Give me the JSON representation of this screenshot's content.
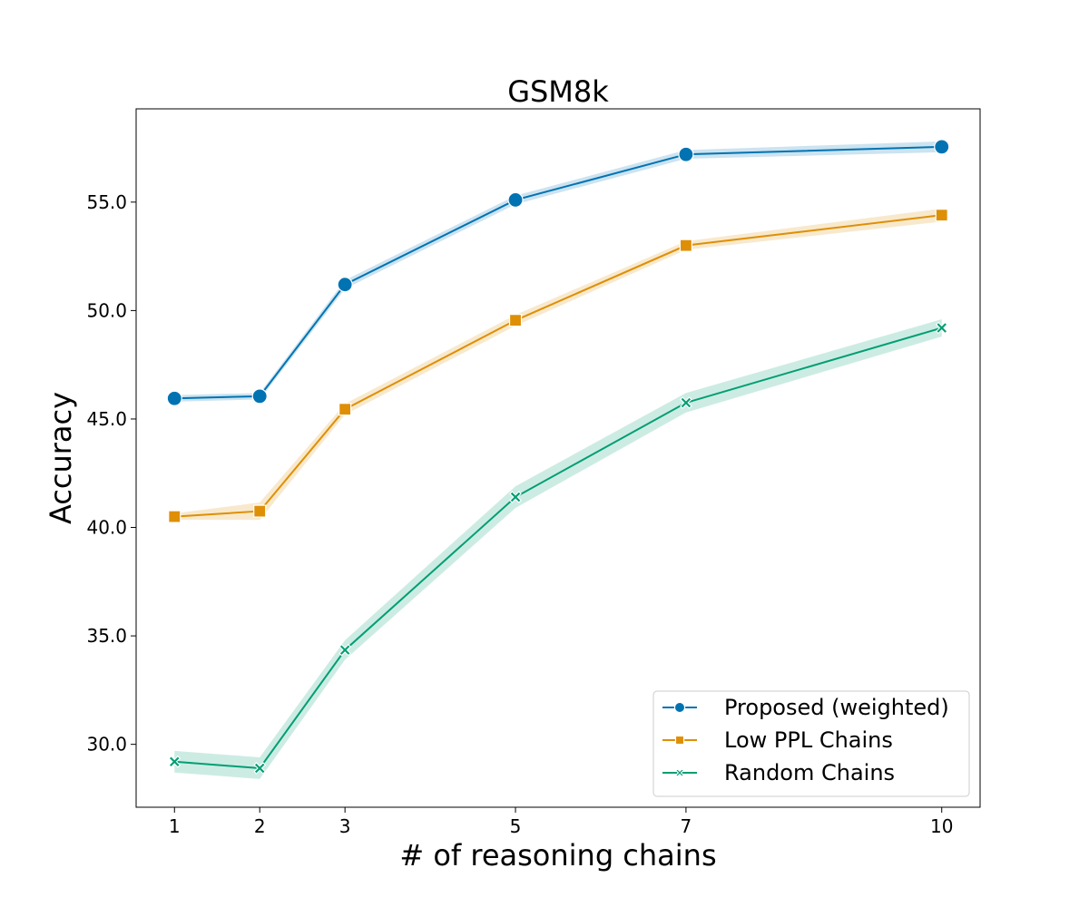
{
  "chart_data": {
    "type": "line",
    "title": "GSM8k",
    "xlabel": "# of reasoning chains",
    "ylabel": "Accuracy",
    "x": [
      1,
      2,
      3,
      5,
      7,
      10
    ],
    "x_ticks": [
      "1",
      "2",
      "3",
      "5",
      "7",
      "10"
    ],
    "xlim": [
      0.55,
      10.45
    ],
    "ylim": [
      27.1,
      59.3
    ],
    "y_ticks": [
      "30.0",
      "35.0",
      "40.0",
      "45.0",
      "50.0",
      "55.0"
    ],
    "y_tick_values": [
      30,
      35,
      40,
      45,
      50,
      55
    ],
    "grid": false,
    "legend_position": "lower-right",
    "series": [
      {
        "name": "Proposed (weighted)",
        "color": "#0173b2",
        "marker": "circle",
        "values": [
          45.95,
          46.05,
          51.2,
          55.1,
          57.2,
          57.55
        ],
        "lower": [
          45.8,
          45.9,
          51.0,
          54.9,
          57.0,
          57.3
        ],
        "upper": [
          46.1,
          46.2,
          51.4,
          55.3,
          57.4,
          57.8
        ]
      },
      {
        "name": "Low PPL Chains",
        "color": "#de8f05",
        "marker": "square",
        "values": [
          40.5,
          40.75,
          45.45,
          49.55,
          53.0,
          54.4
        ],
        "lower": [
          40.35,
          40.35,
          45.2,
          49.3,
          52.8,
          54.1
        ],
        "upper": [
          40.65,
          41.15,
          45.7,
          49.8,
          53.2,
          54.7
        ]
      },
      {
        "name": "Random Chains",
        "color": "#029e73",
        "marker": "x",
        "values": [
          29.2,
          28.9,
          34.35,
          41.4,
          45.75,
          49.2
        ],
        "lower": [
          28.7,
          28.4,
          33.9,
          40.9,
          45.3,
          48.8
        ],
        "upper": [
          29.7,
          29.4,
          34.8,
          41.9,
          46.2,
          49.6
        ]
      }
    ]
  }
}
